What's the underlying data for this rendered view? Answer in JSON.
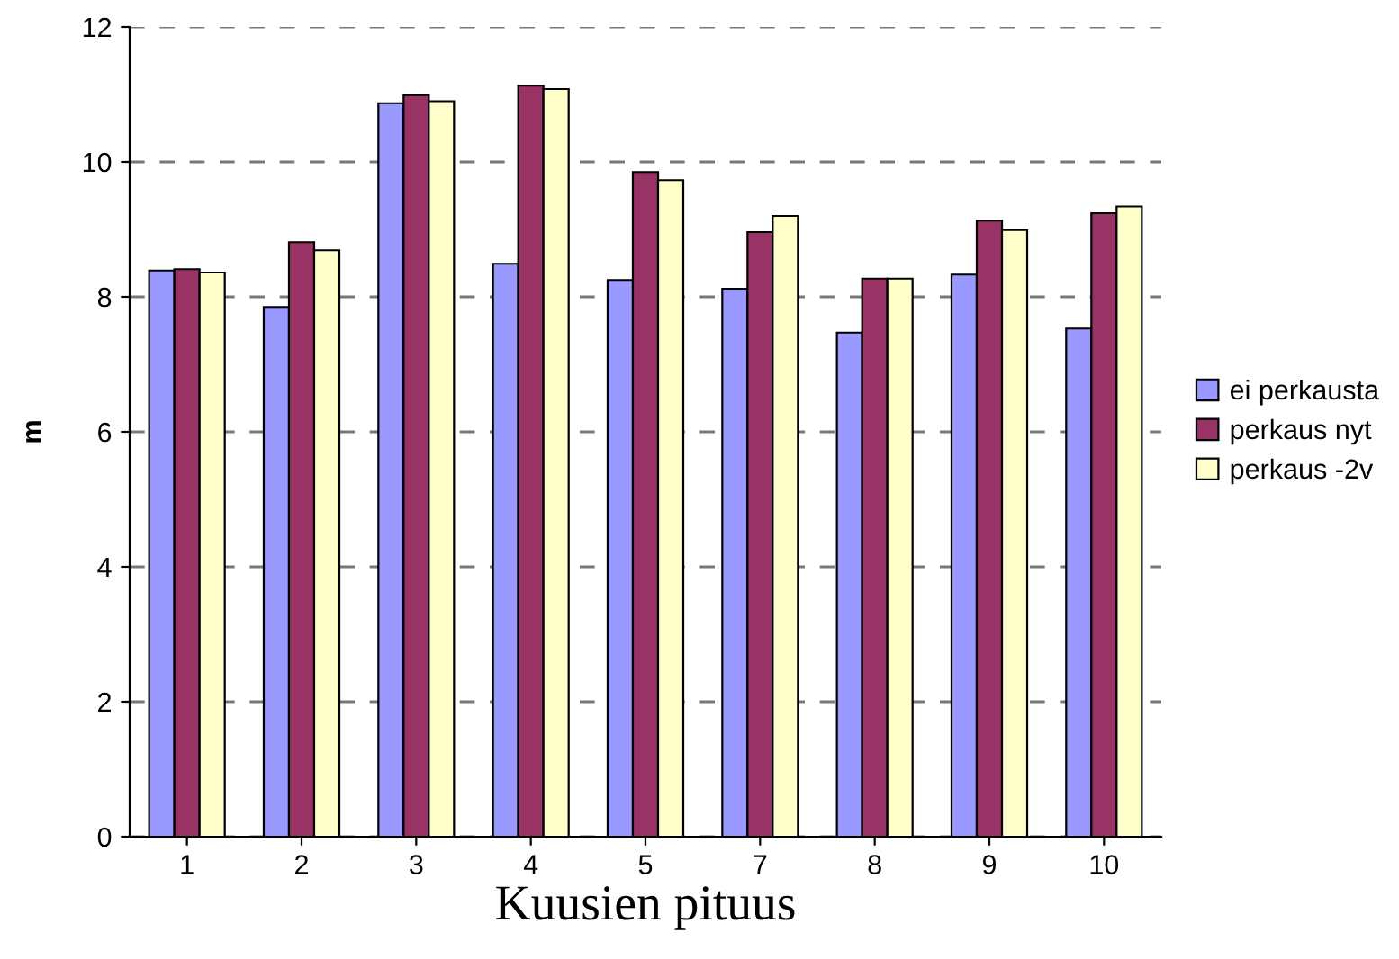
{
  "chart_data": {
    "type": "bar",
    "xlabel": "Kuusien pituus",
    "ylabel": "m",
    "categories": [
      "1",
      "2",
      "3",
      "4",
      "5",
      "7",
      "8",
      "9",
      "10"
    ],
    "series": [
      {
        "name": "ei perkausta",
        "color": "#9999ff",
        "values": [
          8.39,
          7.85,
          10.87,
          8.49,
          8.25,
          8.12,
          7.47,
          8.33,
          7.53
        ]
      },
      {
        "name": "perkaus nyt",
        "color": "#993366",
        "values": [
          8.41,
          8.81,
          10.99,
          11.13,
          9.85,
          8.96,
          8.27,
          9.13,
          9.24
        ]
      },
      {
        "name": "perkaus -2v",
        "color": "#ffffcc",
        "values": [
          8.36,
          8.69,
          10.9,
          11.08,
          9.73,
          9.2,
          8.27,
          8.99,
          9.34
        ]
      }
    ],
    "ylim": [
      0,
      12
    ],
    "yticks": [
      0,
      2,
      4,
      6,
      8,
      10,
      12
    ],
    "grid": "y",
    "legend": "right"
  }
}
